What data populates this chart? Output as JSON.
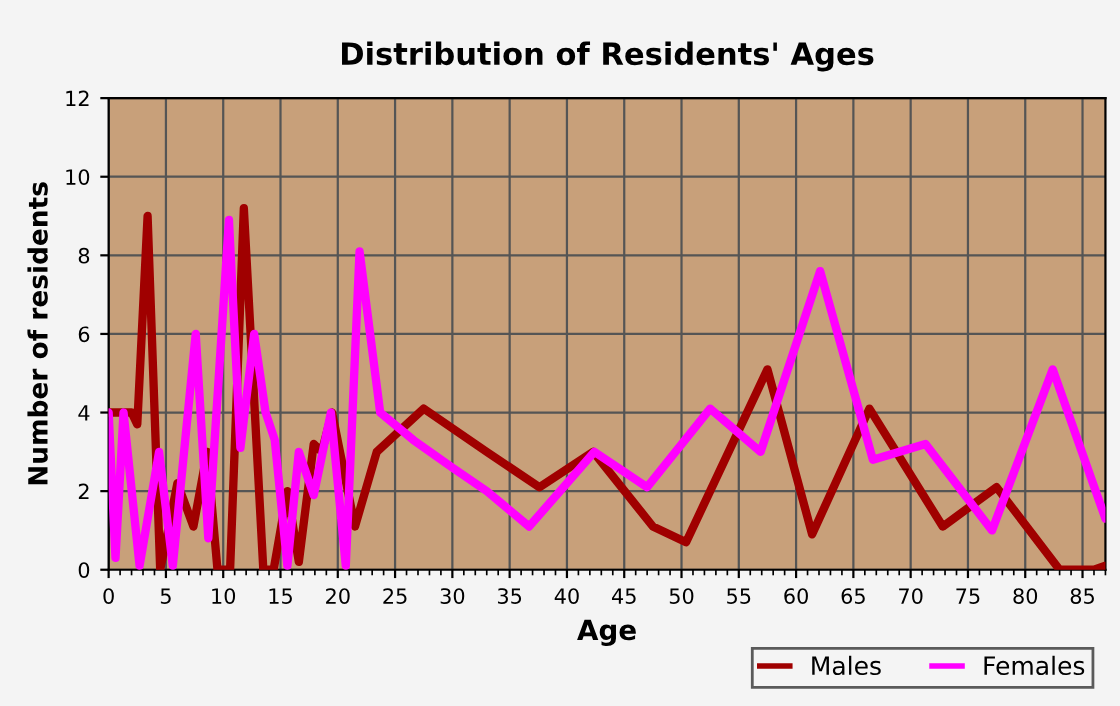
{
  "chart_data": {
    "type": "line",
    "title": "Distribution of Residents' Ages",
    "xlabel": "Age",
    "ylabel": "Number of residents",
    "xlim": [
      0,
      87
    ],
    "xticks": [
      0,
      5,
      10,
      15,
      20,
      25,
      30,
      35,
      40,
      45,
      50,
      55,
      60,
      65,
      70,
      75,
      80,
      85
    ],
    "ylim": [
      0,
      12
    ],
    "yticks": [
      0,
      2,
      4,
      6,
      8,
      10,
      12
    ],
    "grid": true,
    "legend": "bottom right",
    "line_style": "solid",
    "series": [
      {
        "name": "Males",
        "color": "#a00000",
        "x": [
          0,
          2,
          2.5,
          3.4,
          4.5,
          6,
          7.4,
          8.6,
          9.5,
          10.6,
          11.8,
          13.5,
          14.4,
          15.6,
          16.6,
          17.9,
          18.6,
          19.5,
          21.5,
          23.4,
          27.5,
          33,
          37.6,
          42.3,
          47.5,
          50.4,
          57.5,
          61.4,
          66.4,
          72.8,
          77.5,
          83,
          86,
          87
        ],
        "values": [
          4,
          4,
          3.7,
          9,
          0,
          2.2,
          1.1,
          3,
          0,
          0,
          9.2,
          0,
          0,
          2,
          0.2,
          3.2,
          3,
          4,
          1.1,
          3,
          4.1,
          3,
          2.1,
          3,
          1.1,
          0.7,
          5.1,
          0.9,
          4.1,
          1.1,
          2.1,
          0,
          0,
          0.1
        ]
      },
      {
        "name": "Females",
        "color": "#ff00ff",
        "x": [
          0,
          0.6,
          1.3,
          2.7,
          4.4,
          5.6,
          7.6,
          8.7,
          10.5,
          11.5,
          12.7,
          13.7,
          14.5,
          15.6,
          16.6,
          17.9,
          19.4,
          20.7,
          21.9,
          23.7,
          26.6,
          30,
          33,
          36.7,
          42.4,
          47,
          52.5,
          56.9,
          62.1,
          66.7,
          71.3,
          77.1,
          82.4,
          87
        ],
        "values": [
          4,
          0.3,
          4,
          0.1,
          3,
          0.1,
          6,
          0.8,
          8.9,
          3.1,
          6,
          4,
          3.3,
          0.1,
          3,
          1.9,
          4,
          0.1,
          8.1,
          4,
          3.3,
          2.6,
          2,
          1.1,
          3,
          2.1,
          4.1,
          3,
          7.6,
          2.8,
          3.2,
          1,
          5.1,
          1.3
        ]
      }
    ]
  }
}
